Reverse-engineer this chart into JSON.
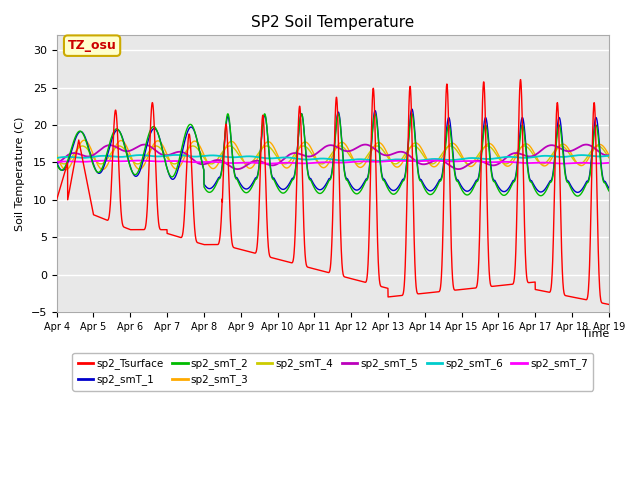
{
  "title": "SP2 Soil Temperature",
  "ylabel": "Soil Temperature (C)",
  "xlabel": "Time",
  "xlim_start": 0,
  "xlim_end": 15,
  "ylim": [
    -5,
    32
  ],
  "yticks": [
    -5,
    0,
    5,
    10,
    15,
    20,
    25,
    30
  ],
  "xtick_labels": [
    "Apr 4",
    "Apr 5",
    "Apr 6",
    "Apr 7",
    "Apr 8",
    "Apr 9",
    "Apr 10",
    "Apr 11",
    "Apr 12",
    "Apr 13",
    "Apr 14",
    "Apr 15",
    "Apr 16",
    "Apr 17",
    "Apr 18",
    "Apr 19"
  ],
  "fig_bg": "#ffffff",
  "plot_bg": "#e8e8e8",
  "annotation_text": "TZ_osu",
  "annotation_color": "#cc0000",
  "annotation_bg": "#ffffcc",
  "annotation_border": "#ccaa00",
  "series_colors": {
    "sp2_Tsurface": "#ff0000",
    "sp2_smT_1": "#0000cc",
    "sp2_smT_2": "#00bb00",
    "sp2_smT_3": "#ffaa00",
    "sp2_smT_4": "#cccc00",
    "sp2_smT_5": "#bb00bb",
    "sp2_smT_6": "#00cccc",
    "sp2_smT_7": "#ff00ff"
  },
  "legend_labels": [
    "sp2_Tsurface",
    "sp2_smT_1",
    "sp2_smT_2",
    "sp2_smT_3",
    "sp2_smT_4",
    "sp2_smT_5",
    "sp2_smT_6",
    "sp2_smT_7"
  ]
}
